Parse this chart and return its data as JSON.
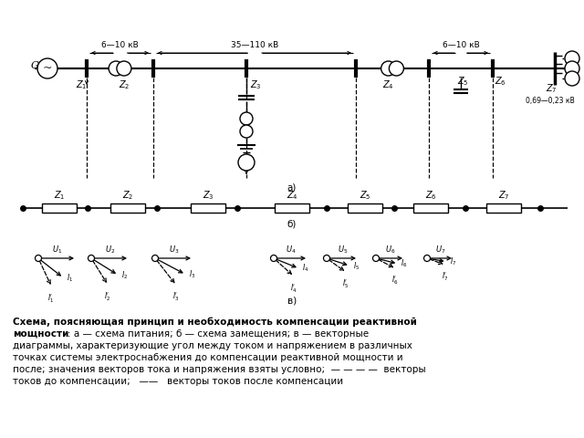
{
  "bg_color": "#ffffff",
  "line_color": "#000000",
  "label_a": "а)",
  "label_b": "б)",
  "label_v": "в)",
  "voltage_label_1": "6—10 кВ",
  "voltage_label_2": "35—110 кВ",
  "voltage_label_3": "6—10 кВ",
  "voltage_label_4": "0,69—0,23 кВ",
  "caption_line1_bold": "Схема, поясняющая принцип и необходимость компенсации реактивной",
  "caption_line2_bold": "мощности",
  "caption_line2_normal": ": а — схема питания; б — схема замещения; в — векторные",
  "caption_line3": "диаграммы, характеризующие угол между током и напряжением в различных",
  "caption_line4": "точках системы электроснабжения до компенсации реактивной мощности и",
  "caption_line5": "после; значения векторов тока и напряжения взяты условно;  — — — —  векторы",
  "caption_line6": "токов до компенсации;   ——   векторы токов после компенсации"
}
